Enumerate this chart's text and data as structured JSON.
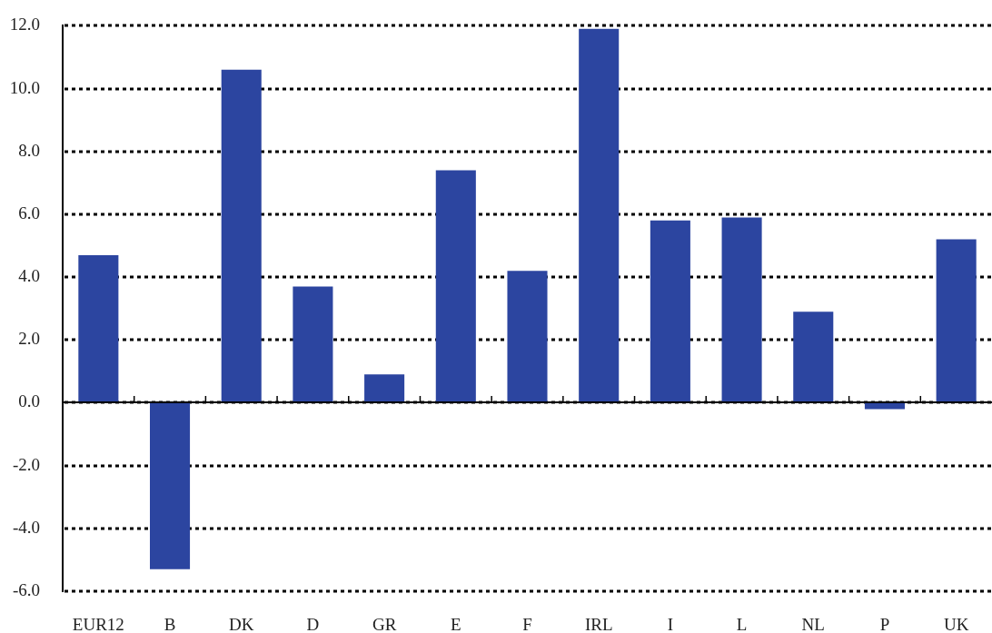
{
  "chart_data": {
    "type": "bar",
    "categories": [
      "EUR12",
      "B",
      "DK",
      "D",
      "GR",
      "E",
      "F",
      "IRL",
      "I",
      "L",
      "NL",
      "P",
      "UK"
    ],
    "values": [
      4.7,
      -5.3,
      10.6,
      3.7,
      0.9,
      7.4,
      4.2,
      11.9,
      5.8,
      5.9,
      2.9,
      -0.2,
      5.2
    ],
    "color": "#2c45a0",
    "ylim": [
      -6,
      12
    ],
    "yticks": [
      {
        "value": -6,
        "label": "-6.0"
      },
      {
        "value": -4,
        "label": "-4.0"
      },
      {
        "value": -2,
        "label": "-2.0"
      },
      {
        "value": 0,
        "label": "0.0"
      },
      {
        "value": 2,
        "label": "2.0"
      },
      {
        "value": 4,
        "label": "4.0"
      },
      {
        "value": 6,
        "label": "6.0"
      },
      {
        "value": 8,
        "label": "8.0"
      },
      {
        "value": 10,
        "label": "10.0"
      },
      {
        "value": 12,
        "label": "12.0"
      }
    ],
    "grid": "y"
  }
}
